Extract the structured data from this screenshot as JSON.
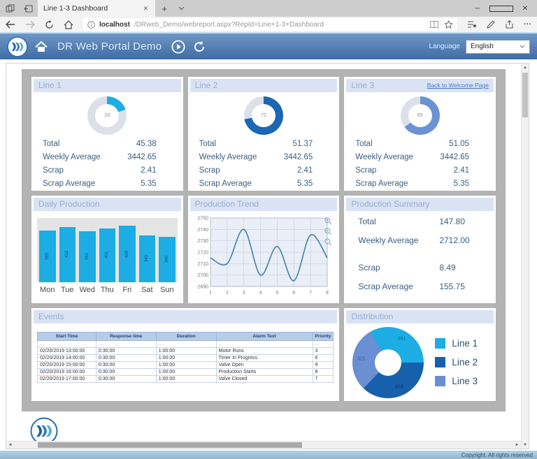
{
  "browser": {
    "tab_title": "Line 1-3 Dashboard",
    "url_host": "localhost",
    "url_path": "/DRweb_Demo/webreport.aspx?RepId=Line+1-3+Dashboard"
  },
  "icons": {
    "close": "✕",
    "plus": "+",
    "minimize": "─",
    "ellipsis": "···"
  },
  "header": {
    "title": "DR Web Portal Demo",
    "language_label": "Language",
    "language_value": "English"
  },
  "links": {
    "back_to_welcome": "Back to Welcome Page"
  },
  "line_panels": [
    {
      "title": "Line 1",
      "gauge": 20,
      "color": "#1cade4",
      "stats": [
        [
          "Total",
          "45.38"
        ],
        [
          "Weekly Average",
          "3442.65"
        ],
        [
          "Scrap",
          "2.41"
        ],
        [
          "Scrap Average",
          "5.35"
        ]
      ]
    },
    {
      "title": "Line 2",
      "gauge": 72,
      "color": "#1b67b3",
      "stats": [
        [
          "Total",
          "51.37"
        ],
        [
          "Weekly Average",
          "3442.65"
        ],
        [
          "Scrap",
          "2.41"
        ],
        [
          "Scrap Average",
          "5.35"
        ]
      ]
    },
    {
      "title": "Line 3",
      "gauge": 65,
      "color": "#6b92d4",
      "stats": [
        [
          "Total",
          "51.05"
        ],
        [
          "Weekly Average",
          "3442.65"
        ],
        [
          "Scrap",
          "2.41"
        ],
        [
          "Scrap Average",
          "5.35"
        ]
      ]
    }
  ],
  "summary": {
    "title": "Production Summary",
    "stats": [
      [
        "Total",
        "147.80"
      ],
      [
        "Weekly Average",
        "2712.00"
      ],
      [
        "Scrap",
        "8.49"
      ],
      [
        "Scrap Average",
        "155.75"
      ]
    ]
  },
  "events": {
    "title": "Events",
    "headers": [
      "Start Time",
      "Response time",
      "Duration",
      "Alarm Text",
      "Priority"
    ],
    "filter_placeholder": "...",
    "rows": [
      [
        "02/20/2019 13:00:00",
        "0:30:00",
        "1:00:00",
        "Motor Runs",
        "3"
      ],
      [
        "02/20/2019 14:00:00",
        "0:30:00",
        "1:00:00",
        "Timer In Progress",
        "6"
      ],
      [
        "02/20/2019 15:00:00",
        "0:30:00",
        "1:00:00",
        "Valve Open",
        "9"
      ],
      [
        "02/20/2019 16:00:00",
        "0:30:00",
        "1:00:00",
        "Production Starts",
        "8"
      ],
      [
        "02/20/2019 17:00:00",
        "0:30:00",
        "1:00:00",
        "Valve Closed",
        "7"
      ]
    ]
  },
  "footer": {
    "copyright": "Copyright. All rights reserved"
  },
  "chart_data": [
    {
      "id": "daily_production",
      "type": "bar",
      "title": "Daily Production",
      "categories": [
        "Mon",
        "Tue",
        "Wed",
        "Thu",
        "Fri",
        "Sat",
        "Sun"
      ],
      "values": [
        385,
        412,
        381,
        401,
        420,
        349,
        340
      ],
      "bar_color": "#1cade4",
      "ylim": [
        0,
        450
      ]
    },
    {
      "id": "production_trend",
      "type": "line",
      "title": "Production Trend",
      "x": [
        1,
        2,
        3,
        4,
        5,
        6,
        7,
        8
      ],
      "y": [
        2715,
        2710,
        2740,
        2700,
        2725,
        2695,
        2735,
        2715
      ],
      "ylim": [
        2690,
        2750
      ],
      "ytick": 10,
      "line_color": "#4d85ad",
      "grid": true
    },
    {
      "id": "distribution",
      "type": "donut",
      "title": "Distribution",
      "labels": [
        "Line 1",
        "Line 2",
        "Line 3"
      ],
      "values": [
        361,
        403,
        321
      ],
      "colors": [
        "#1cade4",
        "#1760ab",
        "#6a8fd2"
      ],
      "start_angle": -30,
      "legend_position": "right"
    },
    {
      "id": "line_gauges",
      "type": "donut-gauge",
      "labels": [
        "Line 1",
        "Line 2",
        "Line 3"
      ],
      "values": [
        20,
        72,
        65
      ]
    }
  ]
}
